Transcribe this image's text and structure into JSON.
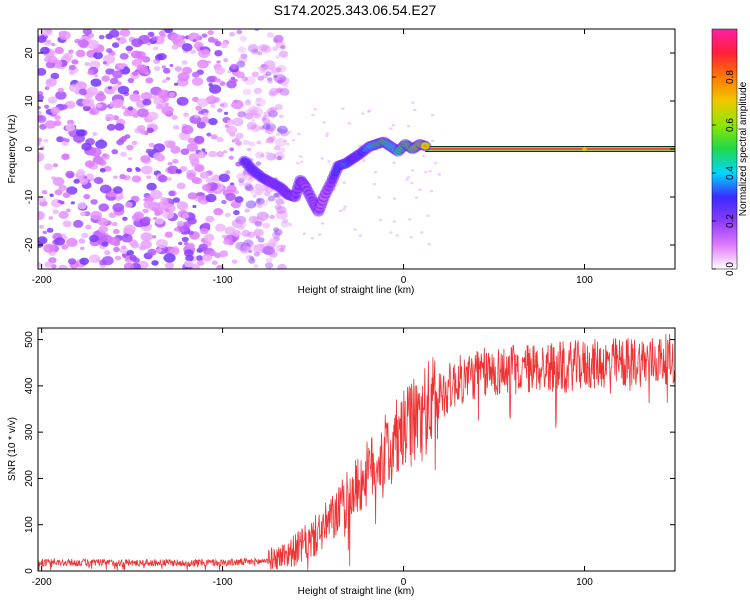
{
  "title": "S174.2025.343.06.54.E27",
  "chart_data": [
    {
      "type": "heatmap",
      "name": "spectrogram",
      "xlabel": "Height of straight line (km)",
      "ylabel": "Frequency (Hz)",
      "xlim": [
        -202,
        150
      ],
      "ylim": [
        -25,
        25
      ],
      "xticks": [
        -200,
        -100,
        0,
        100
      ],
      "yticks": [
        -20,
        -10,
        0,
        10,
        20
      ],
      "colorbar": {
        "label": "Normalized spectral amplitude",
        "range": [
          0.0,
          1.0
        ],
        "ticks": [
          0.0,
          0.2,
          0.4,
          0.6,
          0.8
        ],
        "tick_labels": [
          "0.0",
          "0.2",
          "0.4",
          "0.6",
          "0.8"
        ],
        "colormap": [
          "#ffffff",
          "#e07aff",
          "#8b3bff",
          "#3a2bff",
          "#00d8ff",
          "#1fd94a",
          "#8ee600",
          "#f0c800",
          "#ff7a00",
          "#ff1f3a",
          "#ff1fa6"
        ]
      },
      "noise_region_x": [
        -202,
        -90
      ],
      "signal_trace": [
        {
          "x": -88,
          "y": -2.5,
          "amp": 0.28
        },
        {
          "x": -83,
          "y": -4.5,
          "amp": 0.3
        },
        {
          "x": -78,
          "y": -6.0,
          "amp": 0.3
        },
        {
          "x": -73,
          "y": -7.0,
          "amp": 0.26
        },
        {
          "x": -68,
          "y": -8.0,
          "amp": 0.26
        },
        {
          "x": -64,
          "y": -9.5,
          "amp": 0.24
        },
        {
          "x": -60,
          "y": -10.0,
          "amp": 0.22
        },
        {
          "x": -57,
          "y": -6.5,
          "amp": 0.22
        },
        {
          "x": -54,
          "y": -8.0,
          "amp": 0.2
        },
        {
          "x": -50,
          "y": -11.0,
          "amp": 0.2
        },
        {
          "x": -47,
          "y": -13.0,
          "amp": 0.18
        },
        {
          "x": -44,
          "y": -10.0,
          "amp": 0.16
        },
        {
          "x": -40,
          "y": -7.0,
          "amp": 0.22
        },
        {
          "x": -36,
          "y": -3.5,
          "amp": 0.36
        },
        {
          "x": -32,
          "y": -3.0,
          "amp": 0.4
        },
        {
          "x": -28,
          "y": -2.0,
          "amp": 0.34
        },
        {
          "x": -24,
          "y": -1.0,
          "amp": 0.3
        },
        {
          "x": -19,
          "y": 0.5,
          "amp": 0.44
        },
        {
          "x": -15,
          "y": 1.0,
          "amp": 0.56
        },
        {
          "x": -11,
          "y": 1.5,
          "amp": 0.6
        },
        {
          "x": -7,
          "y": 0.5,
          "amp": 0.5
        },
        {
          "x": -3,
          "y": -0.5,
          "amp": 0.52
        },
        {
          "x": 1,
          "y": 1.0,
          "amp": 0.6
        },
        {
          "x": 5,
          "y": 0.0,
          "amp": 0.64
        },
        {
          "x": 9,
          "y": 1.0,
          "amp": 0.7
        },
        {
          "x": 13,
          "y": 0.5,
          "amp": 0.78
        }
      ],
      "carrier_line": {
        "x_start": 12,
        "x_end": 150,
        "y": 0.0,
        "amp": 0.92
      }
    },
    {
      "type": "line",
      "name": "snr",
      "xlabel": "Height of straight line (km)",
      "ylabel": "SNR (10 * v/v)",
      "xlim": [
        -202,
        150
      ],
      "ylim": [
        0,
        525
      ],
      "xticks": [
        -200,
        -100,
        0,
        100
      ],
      "yticks": [
        0,
        100,
        200,
        300,
        400,
        500
      ],
      "line_color": "#ee3333",
      "series": [
        {
          "name": "SNR",
          "x": [
            -202,
            -150,
            -100,
            -80,
            -70,
            -60,
            -50,
            -40,
            -30,
            -20,
            -10,
            0,
            10,
            20,
            30,
            40,
            60,
            80,
            100,
            120,
            140,
            150
          ],
          "y": [
            18,
            18,
            18,
            20,
            28,
            45,
            70,
            110,
            160,
            210,
            260,
            300,
            340,
            380,
            410,
            425,
            435,
            440,
            445,
            450,
            455,
            460
          ]
        }
      ]
    }
  ]
}
